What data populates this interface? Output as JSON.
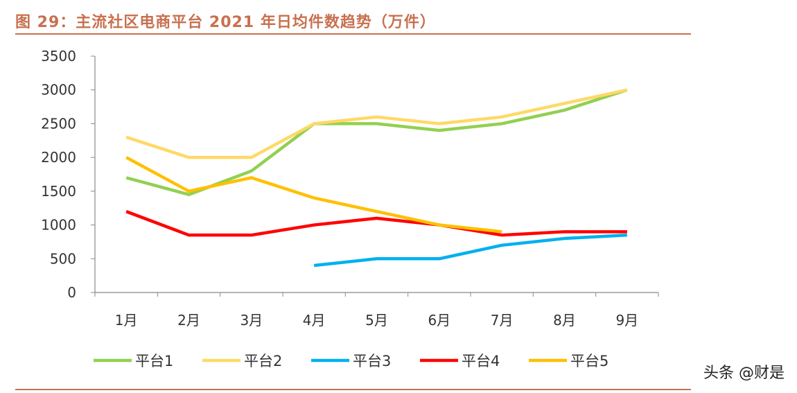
{
  "title": "图 29：主流社区电商平台 2021 年日均件数趋势（万件）",
  "watermark": "头条 @财是",
  "chart_data": {
    "type": "line",
    "title": "图 29：主流社区电商平台 2021 年日均件数趋势（万件）",
    "categories": [
      "1月",
      "2月",
      "3月",
      "4月",
      "5月",
      "6月",
      "7月",
      "8月",
      "9月"
    ],
    "ylim": [
      0,
      3500
    ],
    "yticks": [
      0,
      500,
      1000,
      1500,
      2000,
      2500,
      3000,
      3500
    ],
    "grid": false,
    "legend": "bottom",
    "series": [
      {
        "name": "平台1",
        "color": "#92D050",
        "values": [
          1700,
          1450,
          1800,
          2500,
          2500,
          2400,
          2500,
          2700,
          3000
        ]
      },
      {
        "name": "平台2",
        "color": "#FFD966",
        "values": [
          2300,
          2000,
          2000,
          2500,
          2600,
          2500,
          2600,
          2800,
          3000
        ]
      },
      {
        "name": "平台3",
        "color": "#00B0F0",
        "values": [
          null,
          null,
          null,
          400,
          500,
          500,
          700,
          800,
          850
        ]
      },
      {
        "name": "平台4",
        "color": "#FF0000",
        "values": [
          1200,
          850,
          850,
          1000,
          1100,
          1000,
          850,
          900,
          900
        ]
      },
      {
        "name": "平台5",
        "color": "#FFC000",
        "values": [
          2000,
          1500,
          1700,
          1400,
          1200,
          1000,
          900,
          null,
          null
        ]
      }
    ]
  }
}
